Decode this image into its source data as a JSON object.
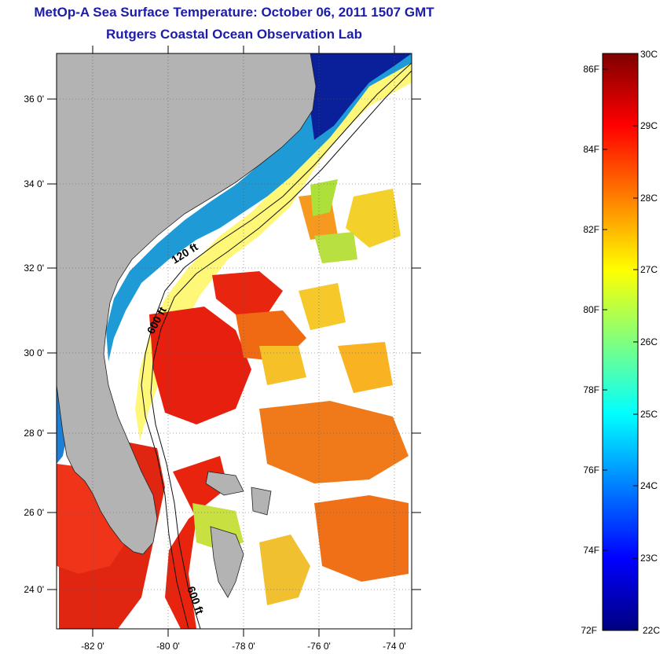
{
  "title": {
    "line1": "MetOp-A Sea Surface Temperature:  October 06, 2011 1507 GMT",
    "line2": "Rutgers Coastal Ocean Observation Lab"
  },
  "map": {
    "lat_labels": [
      "36 0'",
      "34 0'",
      "32 0'",
      "30 0'",
      "28 0'",
      "26 0'",
      "24 0'"
    ],
    "lon_labels": [
      "-82 0'",
      "-80 0'",
      "-78 0'",
      "-76 0'",
      "-74 0'"
    ],
    "contour_labels": [
      "120 ft",
      "600 ft",
      "600 ft"
    ]
  },
  "colorbar": {
    "fahrenheit_labels": [
      "86F",
      "84F",
      "82F",
      "80F",
      "78F",
      "76F",
      "74F",
      "72F"
    ],
    "celsius_labels": [
      "30C",
      "29C",
      "28C",
      "27C",
      "26C",
      "25C",
      "24C",
      "23C",
      "22C"
    ],
    "colors": [
      "#00007f",
      "#0000ff",
      "#007fff",
      "#00ffff",
      "#7fff7f",
      "#ffff00",
      "#ff7f00",
      "#ff0000",
      "#7f0000"
    ]
  }
}
